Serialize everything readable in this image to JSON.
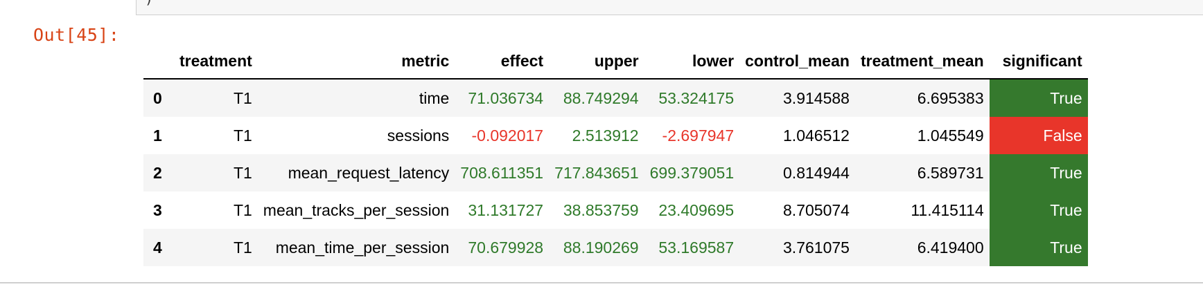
{
  "prompt": "Out[45]:",
  "prev_cell_text": ")",
  "colors": {
    "positive_text": "#2f7a2a",
    "negative_text": "#e8352a",
    "significant_true_bg": "#35792d",
    "significant_false_bg": "#e8352a",
    "prompt_color": "#d84315"
  },
  "table": {
    "columns": [
      "",
      "treatment",
      "metric",
      "effect",
      "upper",
      "lower",
      "control_mean",
      "treatment_mean",
      "significant"
    ],
    "rows": [
      {
        "index": "0",
        "treatment": "T1",
        "metric": "time",
        "effect": "71.036734",
        "upper": "88.749294",
        "lower": "53.324175",
        "control_mean": "3.914588",
        "treatment_mean": "6.695383",
        "significant": "True"
      },
      {
        "index": "1",
        "treatment": "T1",
        "metric": "sessions",
        "effect": "-0.092017",
        "upper": "2.513912",
        "lower": "-2.697947",
        "control_mean": "1.046512",
        "treatment_mean": "1.045549",
        "significant": "False"
      },
      {
        "index": "2",
        "treatment": "T1",
        "metric": "mean_request_latency",
        "effect": "708.611351",
        "upper": "717.843651",
        "lower": "699.379051",
        "control_mean": "0.814944",
        "treatment_mean": "6.589731",
        "significant": "True"
      },
      {
        "index": "3",
        "treatment": "T1",
        "metric": "mean_tracks_per_session",
        "effect": "31.131727",
        "upper": "38.853759",
        "lower": "23.409695",
        "control_mean": "8.705074",
        "treatment_mean": "11.415114",
        "significant": "True"
      },
      {
        "index": "4",
        "treatment": "T1",
        "metric": "mean_time_per_session",
        "effect": "70.679928",
        "upper": "88.190269",
        "lower": "53.169587",
        "control_mean": "3.761075",
        "treatment_mean": "6.419400",
        "significant": "True"
      }
    ]
  }
}
